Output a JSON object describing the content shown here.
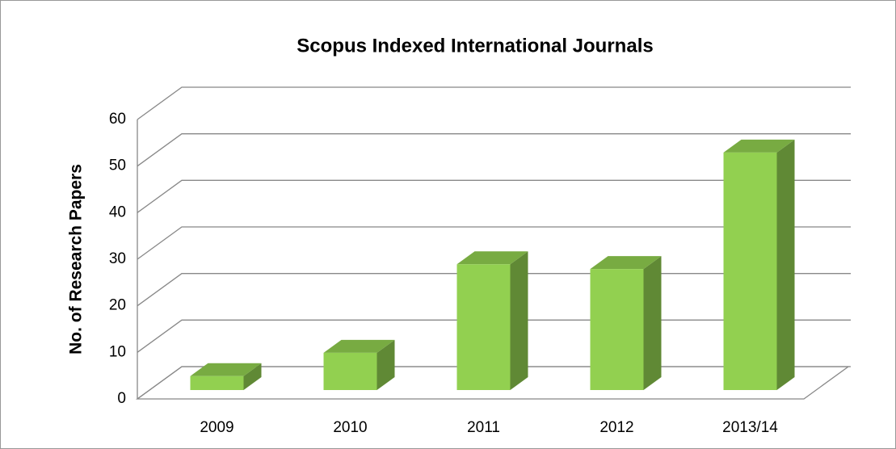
{
  "chart_data": {
    "type": "bar3d",
    "title": "Scopus Indexed International Journals",
    "y_label": "No. of Research Papers",
    "categories": [
      "2009",
      "2010",
      "2011",
      "2012",
      "2013/14"
    ],
    "values": [
      3,
      8,
      27,
      26,
      51
    ],
    "color": "#92d050",
    "ylim": [
      0,
      60
    ],
    "yticks": [
      0,
      10,
      20,
      30,
      40,
      50,
      60
    ],
    "grid": true
  }
}
